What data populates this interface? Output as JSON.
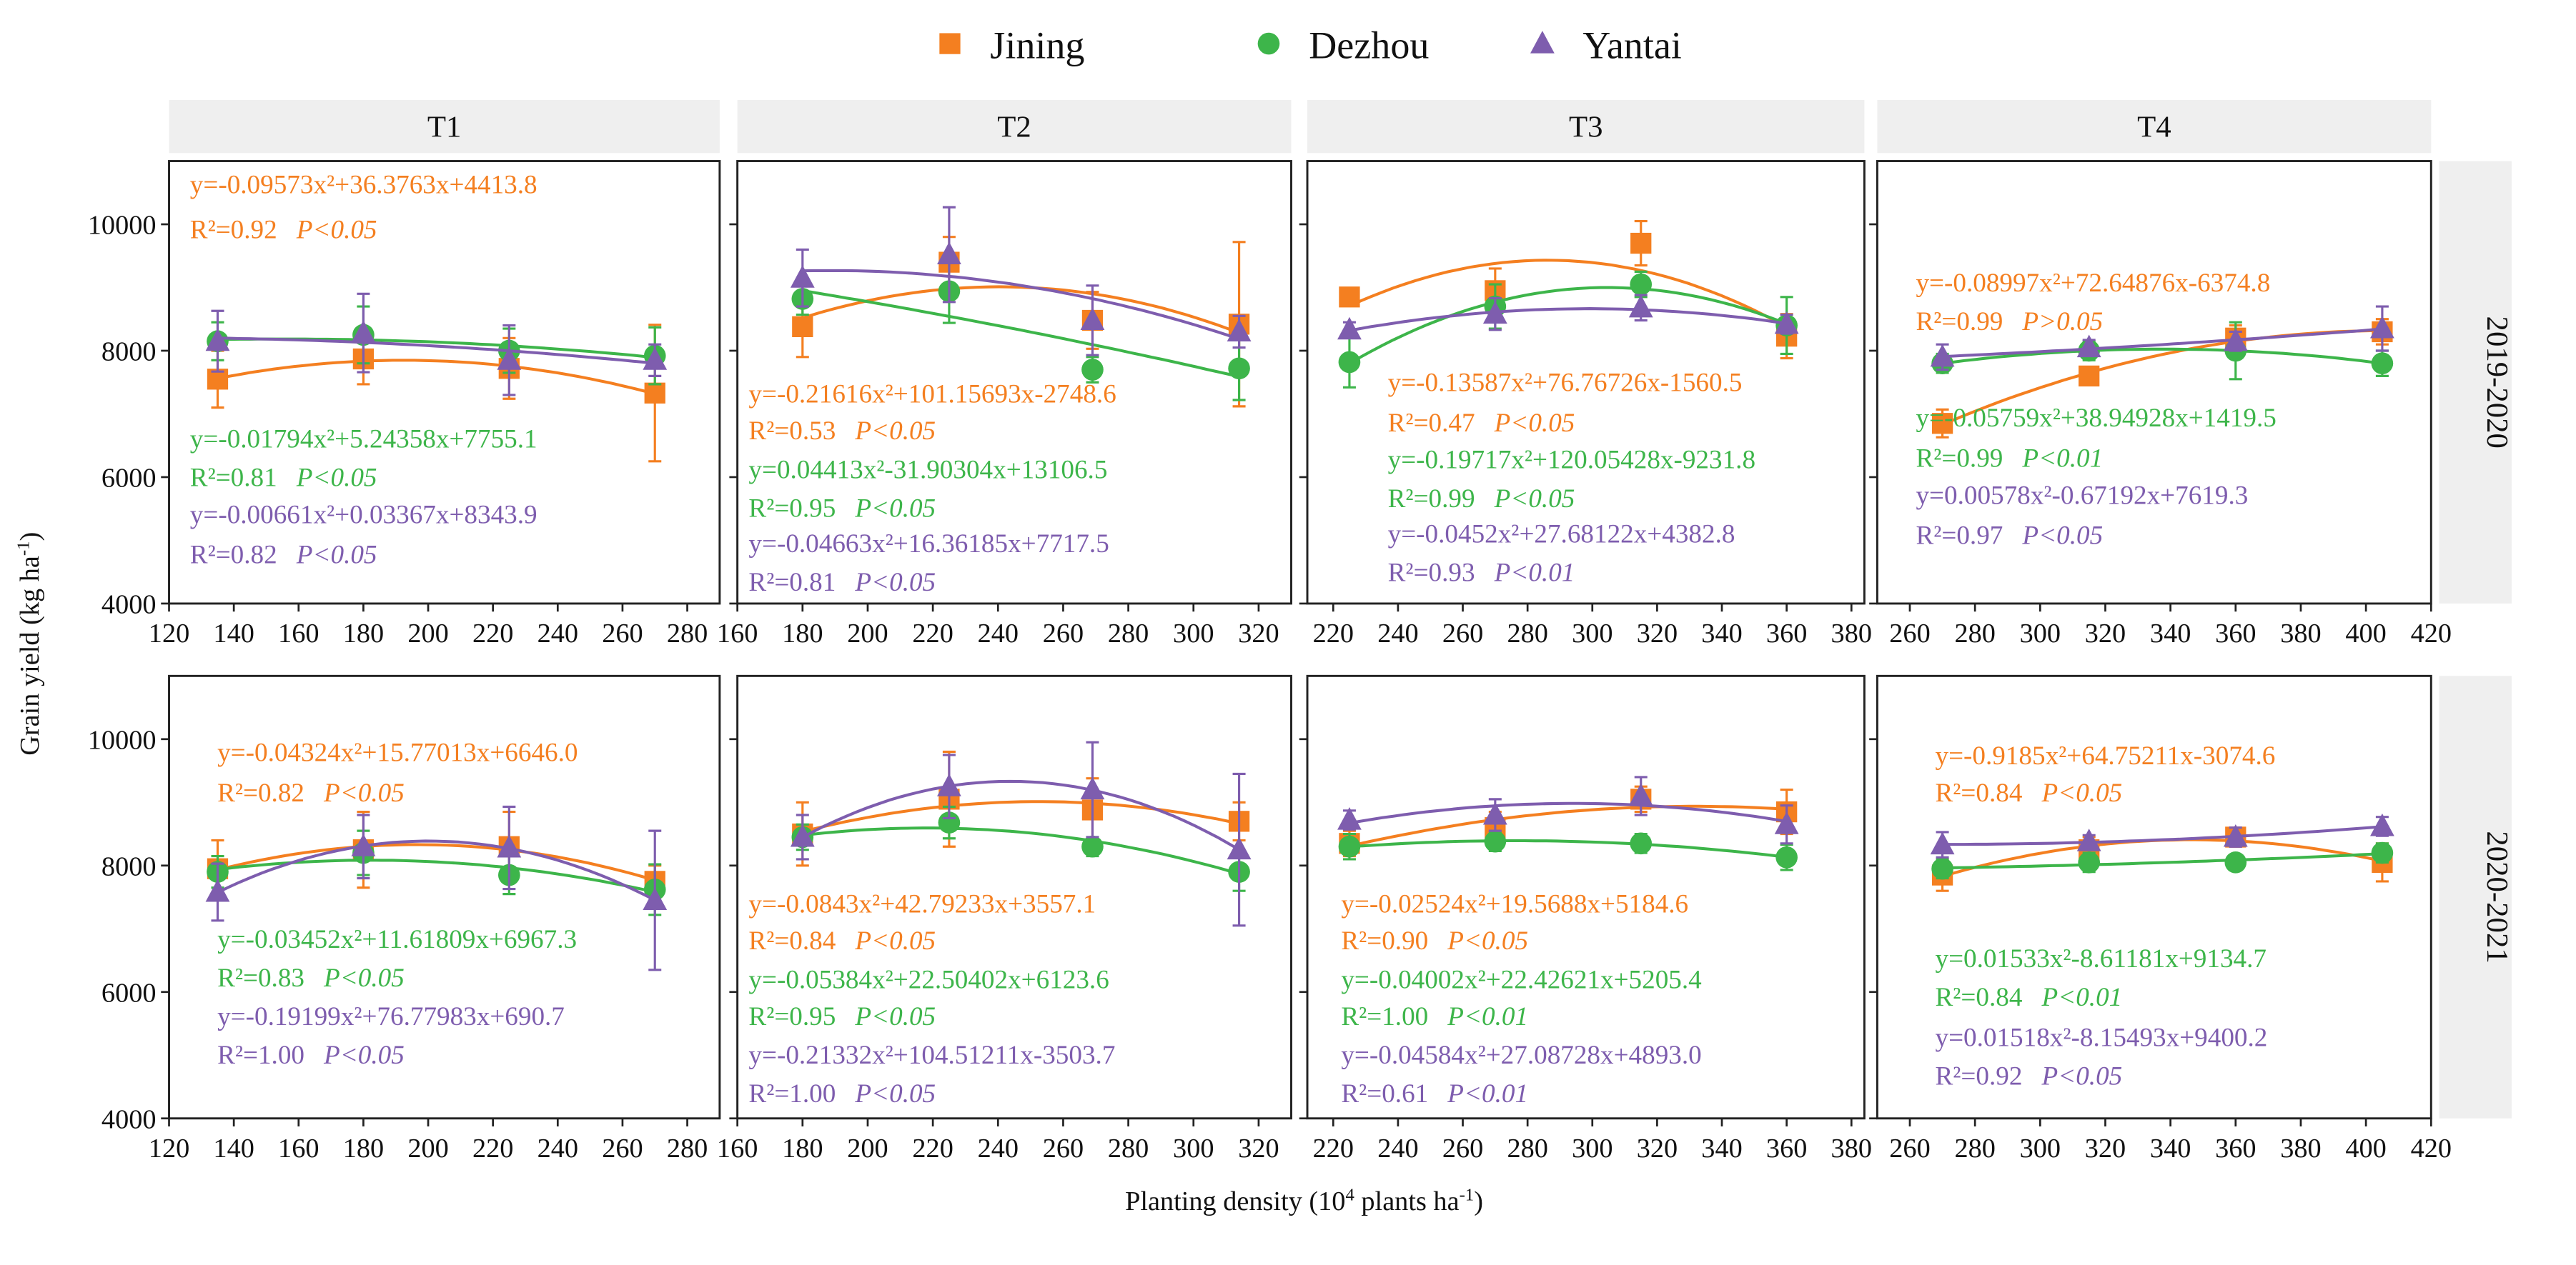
{
  "legend": [
    {
      "name": "Jining",
      "marker": "square",
      "color": "#F47F20"
    },
    {
      "name": "Dezhou",
      "marker": "circle",
      "color": "#3DB54A"
    },
    {
      "name": "Yantai",
      "marker": "triangle",
      "color": "#7E5DAE"
    }
  ],
  "axes": {
    "ylabel": "Grain yield (kg ha",
    "ylabel_sup": "-1",
    "ylabel_end": ")",
    "xlabel_a": "Planting density (10",
    "xlabel_sup1": "4",
    "xlabel_b": " plants ha",
    "xlabel_sup2": "-1",
    "xlabel_end": ")"
  },
  "chart_data": {
    "type": "scatter",
    "title": "",
    "xlabel": "Planting density (10^4 plants ha-1)",
    "ylabel": "Grain yield (kg ha-1)",
    "ylim": [
      4000,
      11000
    ],
    "yticks": [
      4000,
      6000,
      8000,
      10000
    ],
    "columns": [
      {
        "label": "T1",
        "xlim": [
          120,
          290
        ],
        "xticks": [
          120,
          140,
          160,
          180,
          200,
          220,
          240,
          260,
          280
        ],
        "x": [
          135,
          180,
          225,
          270
        ]
      },
      {
        "label": "T2",
        "xlim": [
          160,
          330
        ],
        "xticks": [
          160,
          180,
          200,
          220,
          240,
          260,
          280,
          300,
          320
        ],
        "x": [
          180,
          225,
          269,
          314
        ]
      },
      {
        "label": "T3",
        "xlim": [
          212,
          384
        ],
        "xticks": [
          220,
          240,
          260,
          280,
          300,
          320,
          340,
          360,
          380
        ],
        "x": [
          225,
          270,
          315,
          360
        ]
      },
      {
        "label": "T4",
        "xlim": [
          250,
          420
        ],
        "xticks": [
          260,
          280,
          300,
          320,
          340,
          360,
          380,
          400,
          420
        ],
        "x": [
          270,
          315,
          360,
          405
        ]
      }
    ],
    "rows": [
      {
        "label": "2019-2020",
        "panels": [
          {
            "series": [
              {
                "name": "Jining",
                "values": [
                  7550,
                  7870,
                  7720,
                  7330
                ],
                "err": [
                  450,
                  400,
                  480,
                  1080
                ],
                "eq": "y=-0.09573x²+36.3763x+4413.8",
                "r2": "R²=0.92",
                "p": "P<0.05"
              },
              {
                "name": "Dezhou",
                "values": [
                  8150,
                  8250,
                  8000,
                  7920
                ],
                "err": [
                  300,
                  450,
                  350,
                  450
                ],
                "eq": "y=-0.01794x²+5.24358x+7755.1",
                "r2": "R²=0.81",
                "p": "P<0.05"
              },
              {
                "name": "Yantai",
                "values": [
                  8150,
                  8280,
                  7850,
                  7850
                ],
                "err": [
                  480,
                  620,
                  550,
                  250
                ],
                "eq": "y=-0.00661x²+0.03367x+8343.9",
                "r2": "R²=0.82",
                "p": "P<0.05"
              }
            ]
          },
          {
            "series": [
              {
                "name": "Jining",
                "values": [
                  8380,
                  9400,
                  8480,
                  8420
                ],
                "err": [
                  480,
                  400,
                  450,
                  1300
                ],
                "eq": "y=-0.21616x²+101.15693x-2748.6",
                "r2": "R²=0.53",
                "p": "P<0.05"
              },
              {
                "name": "Dezhou",
                "values": [
                  8820,
                  8940,
                  7700,
                  7720
                ],
                "err": [
                  250,
                  500,
                  200,
                  500
                ],
                "eq": "y=0.04413x²-31.90304x+13106.5",
                "r2": "R²=0.95",
                "p": "P<0.05"
              },
              {
                "name": "Yantai",
                "values": [
                  9150,
                  9520,
                  8480,
                  8300
                ],
                "err": [
                  450,
                  750,
                  550,
                  250
                ],
                "eq": "y=-0.04663x²+16.36185x+7717.5",
                "r2": "R²=0.81",
                "p": "P<0.05"
              }
            ]
          },
          {
            "series": [
              {
                "name": "Jining",
                "values": [
                  8850,
                  8950,
                  9700,
                  8230
                ],
                "err": [
                  120,
                  350,
                  350,
                  350
                ],
                "eq": "y=-0.13587x²+76.76726x-1560.5",
                "r2": "R²=0.47",
                "p": "P<0.05"
              },
              {
                "name": "Dezhou",
                "values": [
                  7820,
                  8700,
                  9050,
                  8400
                ],
                "err": [
                  400,
                  350,
                  200,
                  450
                ],
                "eq": "y=-0.19717x²+120.05428x-9231.8",
                "r2": "R²=0.99",
                "p": "P<0.05"
              },
              {
                "name": "Yantai",
                "values": [
                  8330,
                  8580,
                  8680,
                  8420
                ],
                "err": [
                  120,
                  250,
                  200,
                  150
                ],
                "eq": "y=-0.0452x²+27.68122x+4382.8",
                "r2": "R²=0.93",
                "p": "P<0.01"
              }
            ]
          },
          {
            "series": [
              {
                "name": "Jining",
                "values": [
                  6850,
                  7600,
                  8200,
                  8300
                ],
                "err": [
                  220,
                  100,
                  200,
                  200
                ],
                "eq": "y=-0.08997x²+72.64876x-6374.8",
                "r2": "R²=0.99",
                "p": "P>0.05"
              },
              {
                "name": "Dezhou",
                "values": [
                  7800,
                  8000,
                  8000,
                  7800
                ],
                "err": [
                  150,
                  150,
                  450,
                  200
                ],
                "eq": "y=-0.05759x²+38.94928x+1419.5",
                "r2": "R²=0.99",
                "p": "P<0.01"
              },
              {
                "name": "Yantai",
                "values": [
                  7900,
                  8050,
                  8150,
                  8350
                ],
                "err": [
                  200,
                  120,
                  150,
                  350
                ],
                "eq": "y=0.00578x²-0.67192x+7619.3",
                "r2": "R²=0.97",
                "p": "P<0.05"
              }
            ]
          }
        ]
      },
      {
        "label": "2020-2021",
        "panels": [
          {
            "series": [
              {
                "name": "Jining",
                "values": [
                  7950,
                  8250,
                  8300,
                  7750
                ],
                "err": [
                  450,
                  600,
                  550,
                  250
                ],
                "eq": "y=-0.04324x²+15.77013x+6646.0",
                "r2": "R²=0.82",
                "p": "P<0.05"
              },
              {
                "name": "Dezhou",
                "values": [
                  7900,
                  8200,
                  7850,
                  7620
                ],
                "err": [
                  250,
                  350,
                  300,
                  400
                ],
                "eq": "y=-0.03452x²+11.61809x+6967.3",
                "r2": "R²=0.83",
                "p": "P<0.05"
              },
              {
                "name": "Yantai",
                "values": [
                  7580,
                  8300,
                  8280,
                  7450
                ],
                "err": [
                  450,
                  500,
                  650,
                  1100
                ],
                "eq": "y=-0.19199x²+76.77983x+690.7",
                "r2": "R²=1.00",
                "p": "P<0.05"
              }
            ]
          },
          {
            "series": [
              {
                "name": "Jining",
                "values": [
                  8500,
                  9050,
                  8880,
                  8700
                ],
                "err": [
                  500,
                  750,
                  500,
                  300
                ],
                "eq": "y=-0.0843x²+42.79233x+3557.1",
                "r2": "R²=0.84",
                "p": "P<0.05"
              },
              {
                "name": "Dezhou",
                "values": [
                  8450,
                  8680,
                  8300,
                  7900
                ],
                "err": [
                  200,
                  250,
                  150,
                  300
                ],
                "eq": "y=-0.05384x²+22.50402x+6123.6",
                "r2": "R²=0.95",
                "p": "P<0.05"
              },
              {
                "name": "Yantai",
                "values": [
                  8450,
                  9250,
                  9200,
                  8250
                ],
                "err": [
                  350,
                  500,
                  750,
                  1200
                ],
                "eq": "y=-0.21332x²+104.51211x-3503.7",
                "r2": "R²=1.00",
                "p": "P<0.05"
              }
            ]
          },
          {
            "series": [
              {
                "name": "Jining",
                "values": [
                  8350,
                  8600,
                  9050,
                  8850
                ],
                "err": [
                  200,
                  250,
                  200,
                  350
                ],
                "eq": "y=-0.02524x²+19.5688x+5184.6",
                "r2": "R²=0.90",
                "p": "P<0.05"
              },
              {
                "name": "Dezhou",
                "values": [
                  8300,
                  8380,
                  8350,
                  8130
                ],
                "err": [
                  200,
                  150,
                  150,
                  200
                ],
                "eq": "y=-0.04002x²+22.42621x+5205.4",
                "r2": "R²=1.00",
                "p": "P<0.01"
              },
              {
                "name": "Yantai",
                "values": [
                  8720,
                  8800,
                  9100,
                  8650
                ],
                "err": [
                  150,
                  250,
                  300,
                  300
                ],
                "eq": "y=-0.04584x²+27.08728x+4893.0",
                "r2": "R²=0.61",
                "p": "P<0.01"
              }
            ]
          },
          {
            "series": [
              {
                "name": "Jining",
                "values": [
                  7850,
                  8250,
                  8450,
                  8050
                ],
                "err": [
                  250,
                  200,
                  150,
                  300
                ],
                "eq": "y=-0.9185x²+64.75211x-3074.6",
                "r2": "R²=0.84",
                "p": "P<0.05"
              },
              {
                "name": "Dezhou",
                "values": [
                  7950,
                  8050,
                  8050,
                  8200
                ],
                "err": [
                  150,
                  150,
                  100,
                  150
                ],
                "eq": "y=0.01533x²-8.61181x+9134.7",
                "r2": "R²=0.84",
                "p": "P<0.01"
              },
              {
                "name": "Yantai",
                "values": [
                  8330,
                  8380,
                  8450,
                  8620
                ],
                "err": [
                  200,
                  100,
                  150,
                  150
                ],
                "eq": "y=0.01518x²-8.15493x+9400.2",
                "r2": "R²=0.92",
                "p": "P<0.05"
              }
            ]
          }
        ]
      }
    ]
  }
}
